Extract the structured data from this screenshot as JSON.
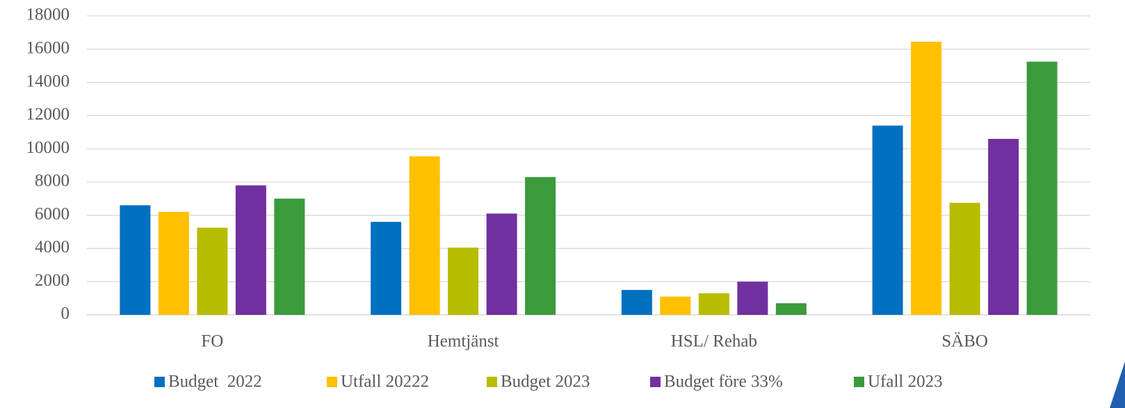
{
  "chart_data": {
    "type": "bar",
    "categories": [
      "FO",
      "Hemtjänst",
      "HSL/ Rehab",
      "SÄBO"
    ],
    "series": [
      {
        "name": "Budget  2022",
        "color": "#0070c0",
        "values": [
          6600,
          5600,
          1500,
          11400
        ]
      },
      {
        "name": "Utfall 20222",
        "color": "#ffc000",
        "values": [
          6200,
          9550,
          1100,
          16450
        ]
      },
      {
        "name": "Budget 2023",
        "color": "#b8bd00",
        "values": [
          5250,
          4050,
          1300,
          6750
        ]
      },
      {
        "name": "Budget före 33%",
        "color": "#7030a0",
        "values": [
          7800,
          6100,
          2000,
          10600
        ]
      },
      {
        "name": "Ufall 2023",
        "color": "#3b9a3b",
        "values": [
          7000,
          8300,
          700,
          15250
        ]
      }
    ],
    "ylim": [
      0,
      18000
    ],
    "yticks": [
      0,
      2000,
      4000,
      6000,
      8000,
      10000,
      12000,
      14000,
      16000,
      18000
    ],
    "grid": true,
    "legend": "bottom"
  }
}
